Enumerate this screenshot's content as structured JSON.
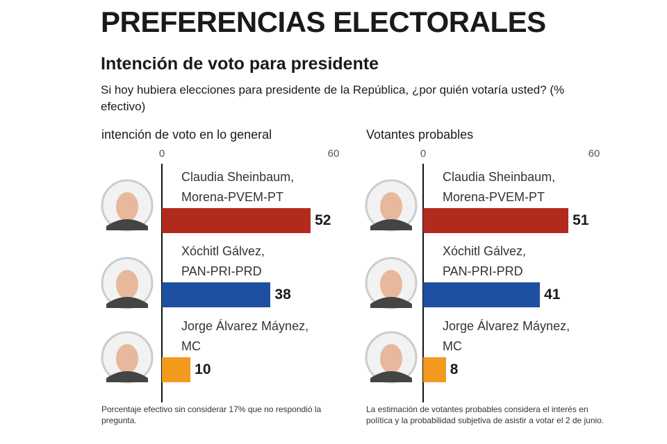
{
  "header": {
    "title": "PREFERENCIAS ELECTORALES",
    "subtitle": "Intención de voto para presidente",
    "question": "Si hoy hubiera elecciones para presidente de la República, ¿por quién votaría usted? (% efectivo)"
  },
  "chart_data": [
    {
      "type": "bar",
      "orientation": "horizontal",
      "title": "intención de voto en lo general",
      "categories": [
        "Claudia Sheinbaum,\nMorena-PVEM-PT",
        "Xóchitl Gálvez,\nPAN-PRI-PRD",
        "Jorge Álvarez Máynez,\nMC"
      ],
      "values": [
        52,
        38,
        10
      ],
      "colors": [
        "#b22a1e",
        "#1f4fa0",
        "#f39a1e"
      ],
      "xlim": [
        0,
        60
      ],
      "xticks": [
        0,
        60
      ],
      "note": "Porcentaje efectivo sin considerar 17% que no respondió la pregunta."
    },
    {
      "type": "bar",
      "orientation": "horizontal",
      "title": "Votantes probables",
      "categories": [
        "Claudia Sheinbaum,\nMorena-PVEM-PT",
        "Xóchitl Gálvez,\nPAN-PRI-PRD",
        "Jorge Álvarez Máynez,\nMC"
      ],
      "values": [
        51,
        41,
        8
      ],
      "colors": [
        "#b22a1e",
        "#1f4fa0",
        "#f39a1e"
      ],
      "xlim": [
        0,
        60
      ],
      "xticks": [
        0,
        60
      ],
      "note": "La estimación de votantes probables considera el interés en política y la probabilidad subjetiva de asistir a votar el 2 de junio."
    }
  ]
}
